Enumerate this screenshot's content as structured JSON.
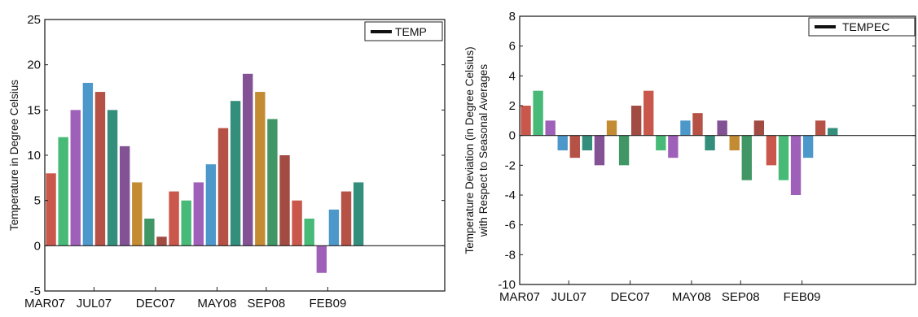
{
  "chart_data": [
    {
      "type": "bar",
      "ylabel": "Temperature in Degree Celsius",
      "legend": {
        "label": "TEMP",
        "placement": "top-right"
      },
      "ylim": [
        -5,
        25
      ],
      "yticks": [
        -5,
        0,
        5,
        10,
        15,
        20,
        25
      ],
      "xticks": [
        "MAR07",
        "JUL07",
        "DEC07",
        "MAY08",
        "SEP08",
        "FEB09"
      ],
      "x_start": "MAR07",
      "x_end": "AUG09",
      "grid": false,
      "series": [
        {
          "monthly_values": {
            "MAR07": 8,
            "APR07": 12,
            "MAY07": 15,
            "JUN07": 18,
            "JUL07": 17,
            "AUG07": 15,
            "SEP07": 11,
            "OCT07": 7,
            "NOV07": 3,
            "DEC07": 1,
            "JAN08": 6,
            "FEB08": 5,
            "MAR08": 7,
            "APR08": 9,
            "MAY08": 13,
            "JUN08": 16,
            "JUL08": 19,
            "AUG08": 17,
            "SEP08": 14,
            "OCT08": 10,
            "NOV08": 5,
            "DEC08": 3,
            "JAN09": -3,
            "FEB09": 4,
            "MAR09": 6,
            "APR09": 7
          }
        }
      ]
    },
    {
      "type": "bar",
      "ylabel": "Temperature Deviation (in Degree Celsius)",
      "ylabel2": "with Respect to Seasonal Averages",
      "legend": {
        "label": "TEMPEC",
        "placement": "top-right"
      },
      "ylim": [
        -10,
        8
      ],
      "yticks": [
        -10,
        -8,
        -6,
        -4,
        -2,
        0,
        2,
        4,
        6,
        8
      ],
      "xticks": [
        "MAR07",
        "JUL07",
        "DEC07",
        "MAY08",
        "SEP08",
        "FEB09"
      ],
      "x_start": "MAR07",
      "x_end": "AUG09",
      "grid": false,
      "series": [
        {
          "monthly_values": {
            "MAR07": 2,
            "APR07": 3,
            "MAY07": 1,
            "JUN07": -1,
            "JUL07": -1.5,
            "AUG07": -1,
            "SEP07": -2,
            "OCT07": 1,
            "NOV07": -2,
            "DEC07": 2,
            "JAN08": 3,
            "FEB08": -1,
            "MAR08": -1.5,
            "APR08": 1,
            "MAY08": 1.5,
            "JUN08": -1,
            "JUL08": 1,
            "AUG08": -1,
            "SEP08": -3,
            "OCT08": 1,
            "NOV08": -2,
            "DEC08": -3,
            "JAN09": -4,
            "FEB09": -1.5,
            "MAR09": 1,
            "APR09": 0.5
          }
        }
      ]
    }
  ]
}
